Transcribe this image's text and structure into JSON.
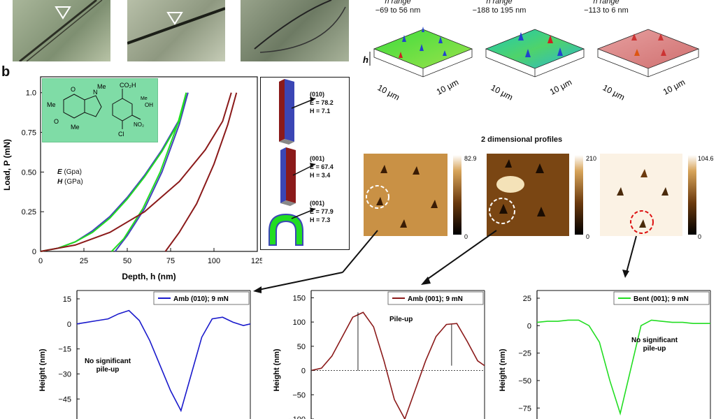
{
  "panel_b_label": "b",
  "surface_titles": [
    {
      "range_label": "h range",
      "range": "−69 to 56 nm"
    },
    {
      "range_label": "h range",
      "range": "−188 to 195 nm"
    },
    {
      "range_label": "h range",
      "range": "−113 to 6 nm"
    }
  ],
  "surface_axis_label": "10 μm",
  "surface_h_label": "h",
  "profiles_2d_title": "2 dimensional profiles",
  "scale_bars": [
    {
      "max": "82.9",
      "min": "0"
    },
    {
      "max": "210",
      "min": "0"
    },
    {
      "max": "104.6",
      "min": "0"
    }
  ],
  "molecule_labels": {
    "co2h": "CO₂H",
    "o": "O",
    "n_methyl_top": "N",
    "methyl": "Me",
    "cl": "Cl",
    "no2": "NO₂",
    "meoh": "OH",
    "me_short": "Me"
  },
  "units_legend": {
    "e_label": "E",
    "e_unit": "(Gpa)",
    "h_label": "H",
    "h_unit": "(GPa)"
  },
  "crystals": [
    {
      "face": "(010)",
      "e": "E = 78.2",
      "h": "H = 7.1"
    },
    {
      "face": "(001)",
      "e": "E = 67.4",
      "h": "H = 3.4"
    },
    {
      "face": "(001)",
      "e": "E = 77.9",
      "h": "H = 7.3"
    }
  ],
  "colors": {
    "blue": "#2a2acc",
    "red": "#8b1a1a",
    "green": "#22dd22",
    "green_box": "#7fdca6"
  },
  "chart_data": [
    {
      "type": "line",
      "title": "",
      "xlabel": "Depth, h (nm)",
      "ylabel": "Load, P (mN)",
      "xlim": [
        0,
        125
      ],
      "ylim": [
        0,
        1.1
      ],
      "xticks": [
        "0",
        "25",
        "50",
        "75",
        "100",
        "125"
      ],
      "yticks": [
        "0",
        "0.25",
        "0.50",
        "0.75",
        "1.0"
      ],
      "series": [
        {
          "color": "#4444bb",
          "loading": [
            [
              0,
              0
            ],
            [
              10,
              0.02
            ],
            [
              20,
              0.06
            ],
            [
              30,
              0.13
            ],
            [
              40,
              0.22
            ],
            [
              50,
              0.34
            ],
            [
              60,
              0.48
            ],
            [
              70,
              0.64
            ],
            [
              80,
              0.83
            ],
            [
              85,
              1.0
            ]
          ],
          "unloading": [
            [
              85,
              1.0
            ],
            [
              80,
              0.8
            ],
            [
              70,
              0.5
            ],
            [
              60,
              0.27
            ],
            [
              50,
              0.1
            ],
            [
              43,
              0.0
            ]
          ]
        },
        {
          "color": "#22dd22",
          "loading": [
            [
              0,
              0
            ],
            [
              10,
              0.02
            ],
            [
              20,
              0.06
            ],
            [
              30,
              0.12
            ],
            [
              40,
              0.21
            ],
            [
              50,
              0.33
            ],
            [
              60,
              0.47
            ],
            [
              70,
              0.63
            ],
            [
              80,
              0.82
            ],
            [
              84,
              1.0
            ]
          ],
          "unloading": [
            [
              84,
              1.0
            ],
            [
              79,
              0.8
            ],
            [
              69,
              0.5
            ],
            [
              59,
              0.27
            ],
            [
              48,
              0.08
            ],
            [
              41,
              0.0
            ]
          ]
        },
        {
          "color": "#8b1a1a",
          "loading": [
            [
              0,
              0
            ],
            [
              20,
              0.04
            ],
            [
              40,
              0.12
            ],
            [
              60,
              0.25
            ],
            [
              80,
              0.44
            ],
            [
              95,
              0.64
            ],
            [
              105,
              0.82
            ],
            [
              110,
              1.0
            ]
          ],
          "unloading": [
            [
              113,
              1.0
            ],
            [
              108,
              0.8
            ],
            [
              100,
              0.55
            ],
            [
              90,
              0.3
            ],
            [
              80,
              0.12
            ],
            [
              72,
              0.0
            ]
          ]
        }
      ]
    },
    {
      "type": "line",
      "legend": "Amb (010); 9 mN",
      "ylabel": "Height (nm)",
      "yticks": [
        "15",
        "0",
        "−15",
        "−30",
        "−45"
      ],
      "ylim": [
        -57,
        20
      ],
      "annotation": "No significant pile-up",
      "color": "#1a1acc",
      "x": [
        0,
        6,
        12,
        18,
        24,
        30,
        36,
        42,
        48,
        54,
        60,
        66,
        72,
        78,
        84,
        90,
        96,
        100
      ],
      "values": [
        0,
        1,
        2,
        3,
        6,
        8,
        2,
        -10,
        -25,
        -40,
        -52,
        -30,
        -8,
        3,
        4,
        1,
        -1,
        0
      ]
    },
    {
      "type": "line",
      "legend": "Amb (001); 9 mN",
      "ylabel": "Height (nm)",
      "yticks": [
        "150",
        "100",
        "50",
        "0",
        "−50",
        "−100"
      ],
      "ylim": [
        -100,
        165
      ],
      "annotation": "Pile-up",
      "color": "#8b1a1a",
      "x": [
        0,
        6,
        12,
        18,
        24,
        30,
        36,
        42,
        48,
        54,
        60,
        66,
        72,
        78,
        84,
        90,
        96,
        100
      ],
      "values": [
        0,
        5,
        30,
        70,
        110,
        120,
        90,
        20,
        -60,
        -100,
        -40,
        20,
        70,
        95,
        97,
        60,
        20,
        10
      ]
    },
    {
      "type": "line",
      "legend": "Bent (001); 9 mN",
      "ylabel": "Height (nm)",
      "yticks": [
        "25",
        "0",
        "−25",
        "−50",
        "−75"
      ],
      "ylim": [
        -85,
        32
      ],
      "annotations": [
        "No significant",
        "pile-up"
      ],
      "color": "#22dd22",
      "x": [
        0,
        6,
        12,
        18,
        24,
        30,
        36,
        42,
        48,
        54,
        60,
        66,
        72,
        78,
        84,
        90,
        96,
        100
      ],
      "values": [
        3,
        4,
        4,
        5,
        5,
        0,
        -15,
        -50,
        -80,
        -40,
        0,
        5,
        4,
        3,
        3,
        2,
        2,
        2
      ]
    }
  ]
}
